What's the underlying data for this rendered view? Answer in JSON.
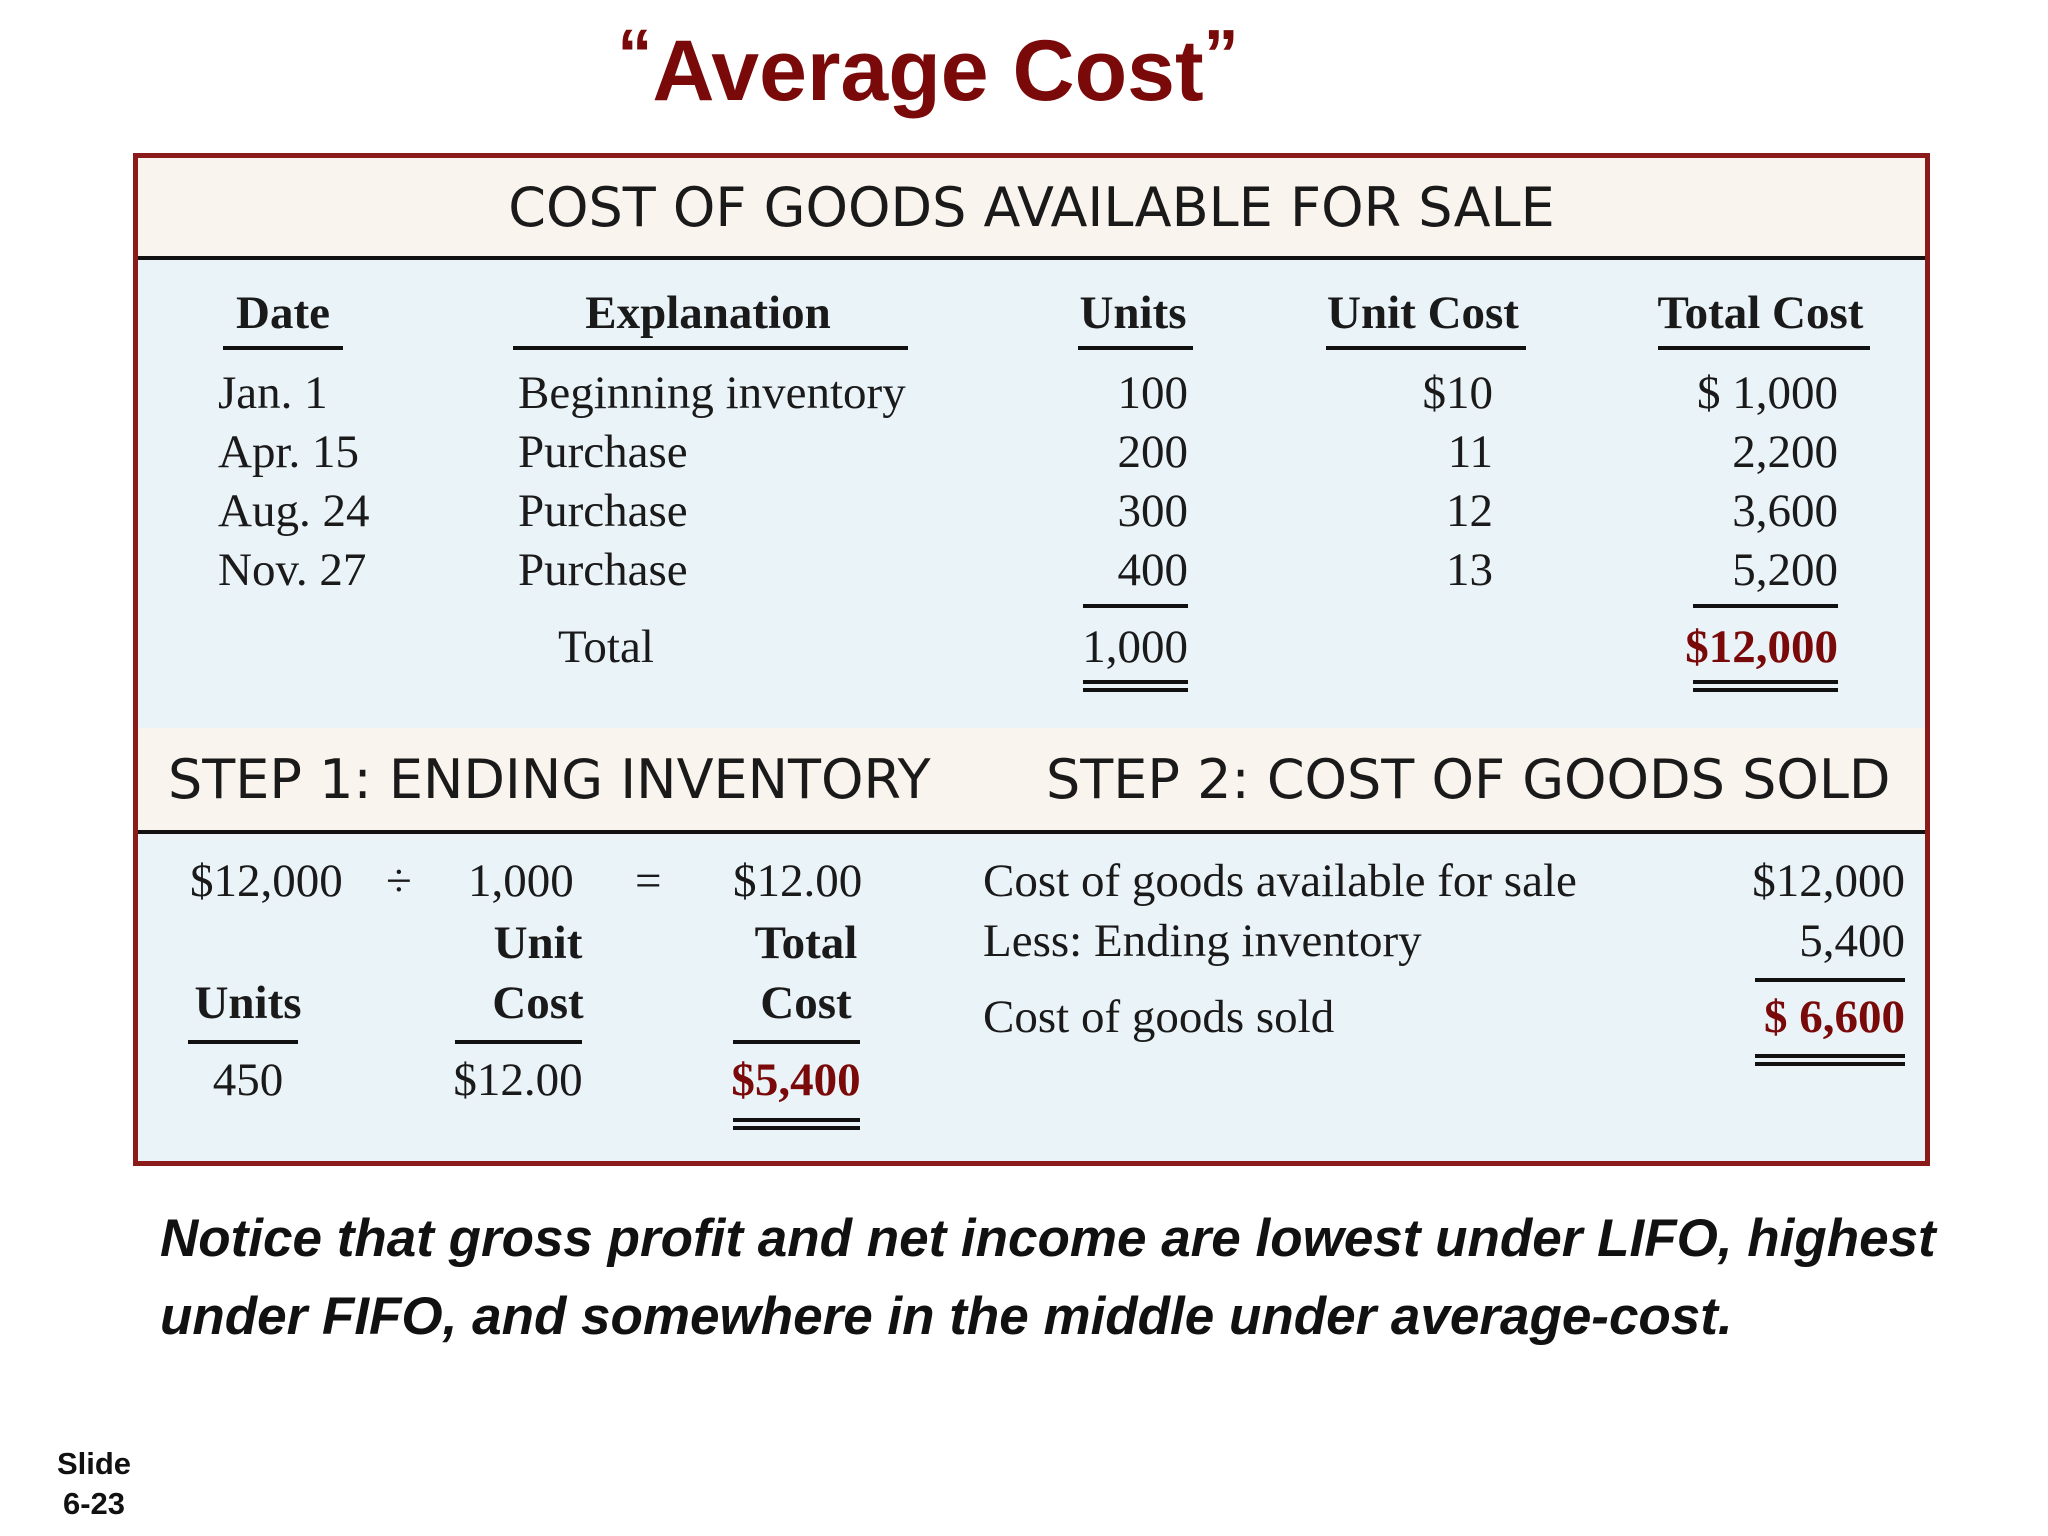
{
  "slide_title": "Average Cost",
  "quote_open": "“",
  "quote_close": "”",
  "section_available": {
    "title": "COST OF GOODS AVAILABLE FOR SALE",
    "headers": {
      "date": "Date",
      "explanation": "Explanation",
      "units": "Units",
      "unit_cost": "Unit Cost",
      "total_cost": "Total Cost"
    },
    "rows": [
      {
        "date": "Jan.  1",
        "explanation": "Beginning inventory",
        "units": "100",
        "unit_cost": "$10",
        "total_cost": "$ 1,000"
      },
      {
        "date": "Apr. 15",
        "explanation": "Purchase",
        "units": "200",
        "unit_cost": "11",
        "total_cost": "2,200"
      },
      {
        "date": "Aug. 24",
        "explanation": "Purchase",
        "units": "300",
        "unit_cost": "12",
        "total_cost": "3,600"
      },
      {
        "date": "Nov. 27",
        "explanation": "Purchase",
        "units": "400",
        "unit_cost": "13",
        "total_cost": "5,200"
      }
    ],
    "total": {
      "label": "Total",
      "units": "1,000",
      "total_cost": "$12,000"
    }
  },
  "step1": {
    "title": "STEP 1: ENDING INVENTORY",
    "amount": "$12,000",
    "divide": "÷",
    "units_total": "1,000",
    "equals": "=",
    "result": "$12.00",
    "label_unit_cost": [
      "Unit",
      "Cost"
    ],
    "label_total_cost": [
      "Total",
      "Cost"
    ],
    "label_units": "Units",
    "units_value": "450",
    "unit_cost_value": "$12.00",
    "total_cost_value": "$5,400"
  },
  "step2": {
    "title": "STEP 2: COST OF GOODS SOLD",
    "rows": [
      {
        "label": "Cost of goods available for sale",
        "value": "$12,000"
      },
      {
        "label": "Less: Ending inventory",
        "value": "5,400"
      }
    ],
    "result_label": "Cost of goods sold",
    "result_value": "$ 6,600"
  },
  "note": "Notice that gross profit and net income are lowest under LIFO, highest under FIFO, and somewhere in the middle under average-cost.",
  "slide_label": "Slide",
  "slide_number": "6-23"
}
